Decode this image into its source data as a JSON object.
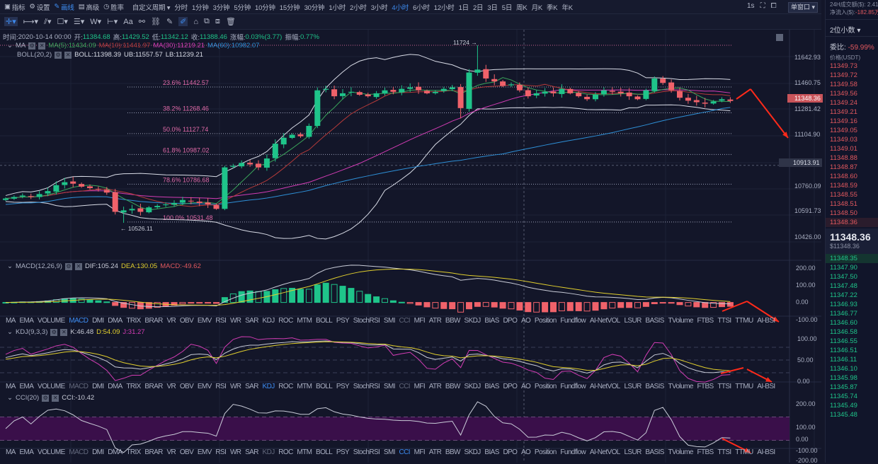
{
  "topbar": {
    "items": [
      {
        "icon": "chart-icon",
        "label": "指标"
      },
      {
        "icon": "gear-icon",
        "label": "设置"
      },
      {
        "icon": "pen-icon",
        "label": "画线",
        "active": true
      },
      {
        "icon": "calendar-icon",
        "label": "高级"
      },
      {
        "icon": "clock-icon",
        "label": "胜率"
      }
    ],
    "custom_period": "自定义周期",
    "periods": [
      "分时",
      "1分钟",
      "3分钟",
      "5分钟",
      "10分钟",
      "15分钟",
      "30分钟",
      "1小时",
      "2小时",
      "3小时",
      "4小时",
      "6小时",
      "12小时",
      "1日",
      "2日",
      "3日",
      "5日",
      "周K",
      "月K",
      "季K",
      "年K"
    ],
    "active_period": "4小时",
    "refresh": "1s",
    "window_mode": "单窗口"
  },
  "info": {
    "time_label": "时间:",
    "time": "2020-10-14 00:00",
    "open_label": "开:",
    "open": "11384.68",
    "high_label": "高:",
    "high": "11429.52",
    "low_label": "低:",
    "low": "11342.12",
    "close_label": "收:",
    "close": "11388.46",
    "change_label": "涨幅:",
    "change": "0.03%(3.77)",
    "amp_label": "振幅:",
    "amp": "0.77%"
  },
  "ma_legend": {
    "name": "MA",
    "ma5": "MA(5):11434.09",
    "ma10": "MA(10):11441.97",
    "ma30": "MA(30):11219.21",
    "ma60": "MA(60):10982.07"
  },
  "boll_legend": {
    "name": "BOLL(20,2)",
    "boll": "BOLL:11398.39",
    "ub": "UB:11557.57",
    "lb": "LB:11239.21"
  },
  "macd_legend": {
    "name": "MACD(12,26,9)",
    "dif": "DIF:105.24",
    "dea": "DEA:130.05",
    "macd": "MACD:-49.62"
  },
  "kdj_legend": {
    "name": "KDJ(9,3,3)",
    "k": "K:46.48",
    "d": "D:54.09",
    "j": "J:31.27"
  },
  "cci_legend": {
    "name": "CCI(20)",
    "cci": "CCI:-10.42"
  },
  "indicator_tabs": [
    "MA",
    "EMA",
    "VOLUME",
    "MACD",
    "DMI",
    "DMA",
    "TRIX",
    "BRAR",
    "VR",
    "OBV",
    "EMV",
    "RSI",
    "WR",
    "SAR",
    "KDJ",
    "ROC",
    "MTM",
    "BOLL",
    "PSY",
    "StochRSI",
    "SMI",
    "CCI",
    "MFI",
    "ATR",
    "BBW",
    "SKDJ",
    "BIAS",
    "DPO",
    "AO",
    "Position",
    "Fundflow",
    "AI-NetVOL",
    "LSUR",
    "BASIS",
    "TVolume",
    "FTBS",
    "TTSI",
    "TTMU",
    "AI-BSI"
  ],
  "price_axis": [
    "11642.93",
    "11460.75",
    "11281.42",
    "11104.90",
    "10760.09",
    "10591.73",
    "10426.00"
  ],
  "current_price_tag": "11348.36",
  "crosshair_price": "10913.91",
  "macd_axis": [
    "200.00",
    "100.00",
    "0.00",
    "-100.00"
  ],
  "kdj_axis": [
    "100.00",
    "50.00",
    "0.00"
  ],
  "cci_axis": [
    "200.00",
    "100.00",
    "0.00",
    "-100.00",
    "-200.00"
  ],
  "fib": [
    {
      "label": "23.6% 11442.57",
      "price": 11442.57
    },
    {
      "label": "38.2% 11268.46",
      "price": 11268.46
    },
    {
      "label": "50.0% 11127.74",
      "price": 11127.74
    },
    {
      "label": "61.8% 10987.02",
      "price": 10987.02
    },
    {
      "label": "78.6% 10786.68",
      "price": 10786.68
    },
    {
      "label": "100.0% 10531.48",
      "price": 10531.48
    }
  ],
  "high_marker": "11724 →",
  "low_marker": "← 10526.11",
  "colors": {
    "up": "#1fc48a",
    "down": "#f0626a",
    "ma5": "#3aa35a",
    "ma10": "#b33a3a",
    "ma30": "#d23cb4",
    "ma60": "#2e8fd6",
    "boll": "#d8dbe6",
    "accent": "#3d8bef",
    "arrow": "#ff2a1a"
  },
  "side": {
    "vol_label": "24H成交额($): 2.41",
    "netflow_label": "净流入($):",
    "netflow": "-182.85万",
    "decimals": "2位小数",
    "ratio_label": "委比:",
    "ratio": "-59.99%",
    "price_header": "价格(USDT)",
    "asks": [
      "11349.73",
      "11349.72",
      "11349.58",
      "11349.56",
      "11349.24",
      "11349.21",
      "11349.16",
      "11349.05",
      "11349.03",
      "11349.01",
      "11348.88",
      "11348.87",
      "11348.60",
      "11348.59",
      "11348.55",
      "11348.51",
      "11348.50",
      "11348.36"
    ],
    "last": "11348.36",
    "last_usd": "$11348.36",
    "bids": [
      "11348.35",
      "11347.90",
      "11347.50",
      "11347.48",
      "11347.22",
      "11346.93",
      "11346.77",
      "11346.60",
      "11346.58",
      "11346.55",
      "11346.51",
      "11346.11",
      "11346.10",
      "11345.98",
      "11345.87",
      "11345.74",
      "11345.49",
      "11345.48"
    ]
  },
  "chart_data": {
    "type": "candlestick",
    "interval": "4小时",
    "price_range": [
      10426.0,
      11642.93
    ],
    "closes": [
      10690,
      10700,
      10710,
      10700,
      10720,
      10740,
      10780,
      10800,
      10790,
      10770,
      10760,
      10750,
      10730,
      10600,
      10610,
      10620,
      10600,
      10630,
      10640,
      10650,
      10660,
      10680,
      10670,
      10660,
      10650,
      10620,
      10900,
      10910,
      10930,
      10920,
      10900,
      10960,
      11060,
      11100,
      11120,
      11110,
      11180,
      11420,
      11430,
      11380,
      11400,
      11410,
      11390,
      11380,
      11400,
      11420,
      11410,
      11430,
      11440,
      11420,
      11400,
      11410,
      11430,
      11440,
      11300,
      11540,
      11560,
      11500,
      11480,
      11450,
      11460,
      11420,
      11380,
      11400,
      11410,
      11400,
      11430,
      11400,
      11380,
      11360,
      11390,
      11420,
      11410,
      11400,
      11380,
      11360,
      11420,
      11500,
      11470,
      11420,
      11370,
      11350,
      11340,
      11330,
      11345,
      11360,
      11348
    ]
  }
}
